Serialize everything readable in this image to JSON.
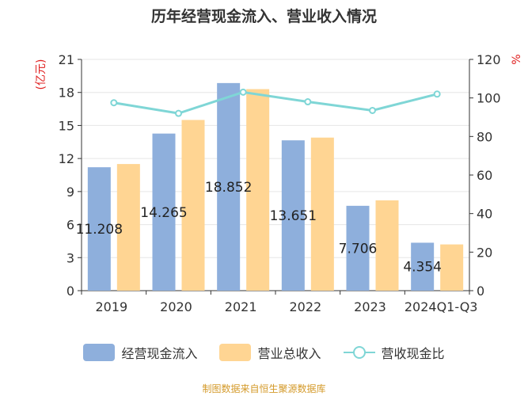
{
  "title": "历年经营现金流入、营业收入情况",
  "source_note": "制图数据来自恒生聚源数据库",
  "colors": {
    "cash_inflow": "#8eafdc",
    "revenue": "#ffd593",
    "ratio_line": "#7fd6d6",
    "axis_unit_label": "#e02020",
    "axis": "#333333",
    "grid": "#e6e6e6",
    "source": "#d49a2a"
  },
  "chart_data": {
    "type": "bar",
    "title": "历年经营现金流入、营业收入情况",
    "categories": [
      "2019",
      "2020",
      "2021",
      "2022",
      "2023",
      "2024Q1-Q3"
    ],
    "y_left": {
      "label": "(亿元)",
      "lim": [
        0,
        21
      ],
      "ticks": [
        0,
        3,
        6,
        9,
        12,
        15,
        18,
        21
      ]
    },
    "y_right": {
      "label": "%",
      "lim": [
        0,
        120
      ],
      "ticks": [
        0,
        20,
        40,
        60,
        80,
        100,
        120
      ]
    },
    "series": [
      {
        "name": "经营现金流入",
        "type": "bar",
        "axis": "left",
        "values": [
          11.208,
          14.265,
          18.852,
          13.651,
          7.706,
          4.354
        ],
        "labels": [
          "11.208",
          "14.265",
          "18.852",
          "13.651",
          "7.706",
          "4.354"
        ]
      },
      {
        "name": "营业总收入",
        "type": "bar",
        "axis": "left",
        "values": [
          11.5,
          15.5,
          18.3,
          13.9,
          8.2,
          4.2
        ]
      },
      {
        "name": "营收现金比",
        "type": "line",
        "axis": "right",
        "values": [
          97.5,
          92.0,
          103.0,
          98.0,
          93.5,
          102.0
        ]
      }
    ],
    "legend": "bottom",
    "grid": true
  }
}
